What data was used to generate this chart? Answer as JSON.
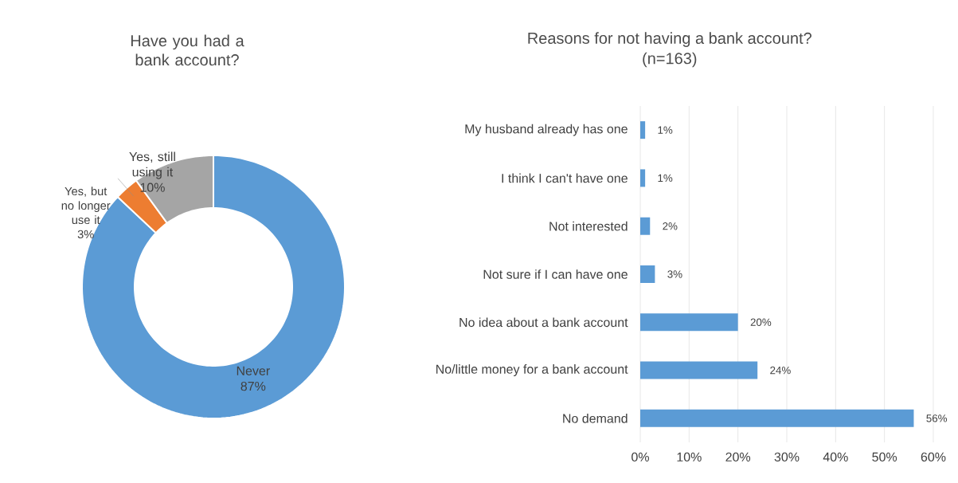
{
  "chart_data": [
    {
      "type": "donut",
      "title": "Have you had a bank account?",
      "categories": [
        "Never",
        "Yes, but no longer use it",
        "Yes, still using it"
      ],
      "values": [
        87,
        3,
        10
      ],
      "colors": [
        "#5b9bd5",
        "#ed7d31",
        "#a5a5a5"
      ],
      "data_labels": true,
      "value_labels": [
        "87%",
        "3%",
        "10%"
      ]
    },
    {
      "type": "bar",
      "orientation": "horizontal",
      "title": "Reasons for not having a bank account?",
      "subtitle": "(n=163)",
      "categories": [
        "My husband already has one",
        "I think I can't have one",
        "Not interested",
        "Not sure if I can have one",
        "No idea about a bank account",
        "No/little money for a bank account",
        "No demand"
      ],
      "values": [
        1,
        1,
        2,
        3,
        20,
        24,
        56
      ],
      "color": "#5b9bd5",
      "value_labels": [
        "1%",
        "1%",
        "2%",
        "3%",
        "20%",
        "24%",
        "56%"
      ],
      "data_labels": true,
      "grid": "x",
      "xlim": [
        0,
        60
      ],
      "xticks": [
        {
          "value": 0,
          "label": "0%"
        },
        {
          "value": 10,
          "label": "10%"
        },
        {
          "value": 20,
          "label": "20%"
        },
        {
          "value": 30,
          "label": "30%"
        },
        {
          "value": 40,
          "label": "40%"
        },
        {
          "value": 50,
          "label": "50%"
        },
        {
          "value": 60,
          "label": "60%"
        }
      ]
    }
  ]
}
